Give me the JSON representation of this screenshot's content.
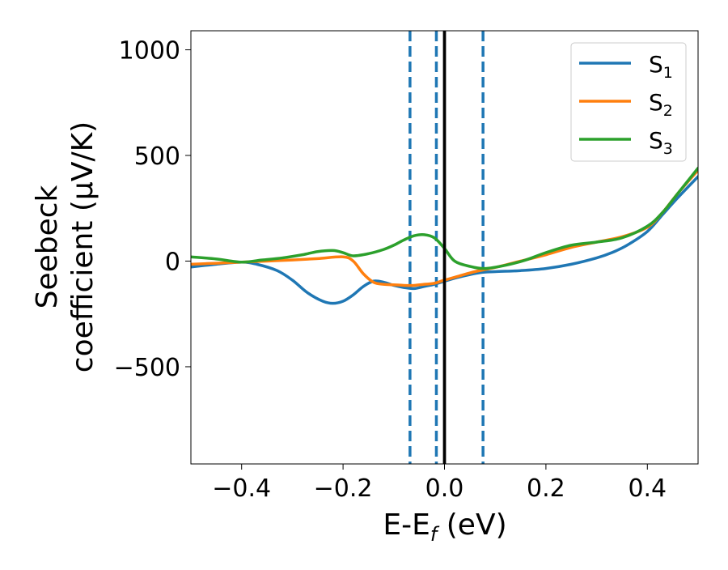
{
  "chart_data": {
    "type": "line",
    "xlabel": "E-E",
    "xlabel_sub": "f",
    "xlabel_unit": " (eV)",
    "ylabel_line1": "Seebeck",
    "ylabel_line2": "coefficient  (μV/K)",
    "xlim": [
      -0.5,
      0.5
    ],
    "ylim": [
      -960,
      1090
    ],
    "xticks": [
      -0.4,
      -0.2,
      0.0,
      0.2,
      0.4
    ],
    "xtick_labels": [
      "−0.4",
      "−0.2",
      "0.0",
      "0.2",
      "0.4"
    ],
    "yticks": [
      -500,
      0,
      500,
      1000
    ],
    "ytick_labels": [
      "−500",
      "0",
      "500",
      "1000"
    ],
    "grid": false,
    "legend_position": "top-right",
    "vlines": [
      {
        "x": -0.068,
        "style": "dashed",
        "color": "#1f77b4"
      },
      {
        "x": -0.016,
        "style": "dashed",
        "color": "#1f77b4"
      },
      {
        "x": 0.0,
        "style": "solid",
        "color": "#000000"
      },
      {
        "x": 0.076,
        "style": "dashed",
        "color": "#1f77b4"
      }
    ],
    "series": [
      {
        "name": "S",
        "sub": "1",
        "color": "#1f77b4",
        "x": [
          -0.5,
          -0.45,
          -0.4,
          -0.37,
          -0.33,
          -0.3,
          -0.27,
          -0.24,
          -0.22,
          -0.2,
          -0.18,
          -0.16,
          -0.14,
          -0.12,
          -0.1,
          -0.08,
          -0.06,
          -0.04,
          -0.02,
          0.0,
          0.03,
          0.07,
          0.1,
          0.15,
          0.2,
          0.25,
          0.3,
          0.33,
          0.36,
          0.4,
          0.43,
          0.46,
          0.5
        ],
        "y": [
          -28,
          -15,
          -5,
          -15,
          -45,
          -90,
          -150,
          -190,
          -200,
          -190,
          -160,
          -120,
          -95,
          -100,
          -115,
          -125,
          -130,
          -120,
          -110,
          -95,
          -75,
          -55,
          -50,
          -45,
          -35,
          -15,
          15,
          40,
          75,
          140,
          220,
          300,
          400
        ]
      },
      {
        "name": "S",
        "sub": "2",
        "color": "#ff7f0e",
        "x": [
          -0.5,
          -0.45,
          -0.4,
          -0.35,
          -0.3,
          -0.25,
          -0.2,
          -0.18,
          -0.16,
          -0.14,
          -0.12,
          -0.1,
          -0.08,
          -0.06,
          -0.04,
          -0.02,
          0.0,
          0.03,
          0.06,
          0.1,
          0.15,
          0.2,
          0.25,
          0.3,
          0.35,
          0.4,
          0.43,
          0.46,
          0.5
        ],
        "y": [
          -15,
          -10,
          -5,
          0,
          5,
          12,
          20,
          0,
          -60,
          -100,
          -110,
          -112,
          -115,
          -115,
          -110,
          -105,
          -90,
          -70,
          -50,
          -30,
          0,
          30,
          65,
          90,
          115,
          160,
          230,
          320,
          430
        ]
      },
      {
        "name": "S",
        "sub": "3",
        "color": "#2ca02c",
        "x": [
          -0.5,
          -0.45,
          -0.4,
          -0.36,
          -0.32,
          -0.28,
          -0.25,
          -0.22,
          -0.2,
          -0.18,
          -0.15,
          -0.12,
          -0.1,
          -0.08,
          -0.06,
          -0.04,
          -0.02,
          0.0,
          0.02,
          0.05,
          0.08,
          0.12,
          0.16,
          0.2,
          0.25,
          0.3,
          0.35,
          0.4,
          0.43,
          0.46,
          0.5
        ],
        "y": [
          20,
          10,
          -5,
          5,
          15,
          30,
          45,
          50,
          40,
          25,
          35,
          55,
          75,
          100,
          120,
          125,
          110,
          60,
          0,
          -25,
          -35,
          -20,
          5,
          40,
          75,
          90,
          110,
          165,
          230,
          320,
          440
        ]
      }
    ]
  }
}
